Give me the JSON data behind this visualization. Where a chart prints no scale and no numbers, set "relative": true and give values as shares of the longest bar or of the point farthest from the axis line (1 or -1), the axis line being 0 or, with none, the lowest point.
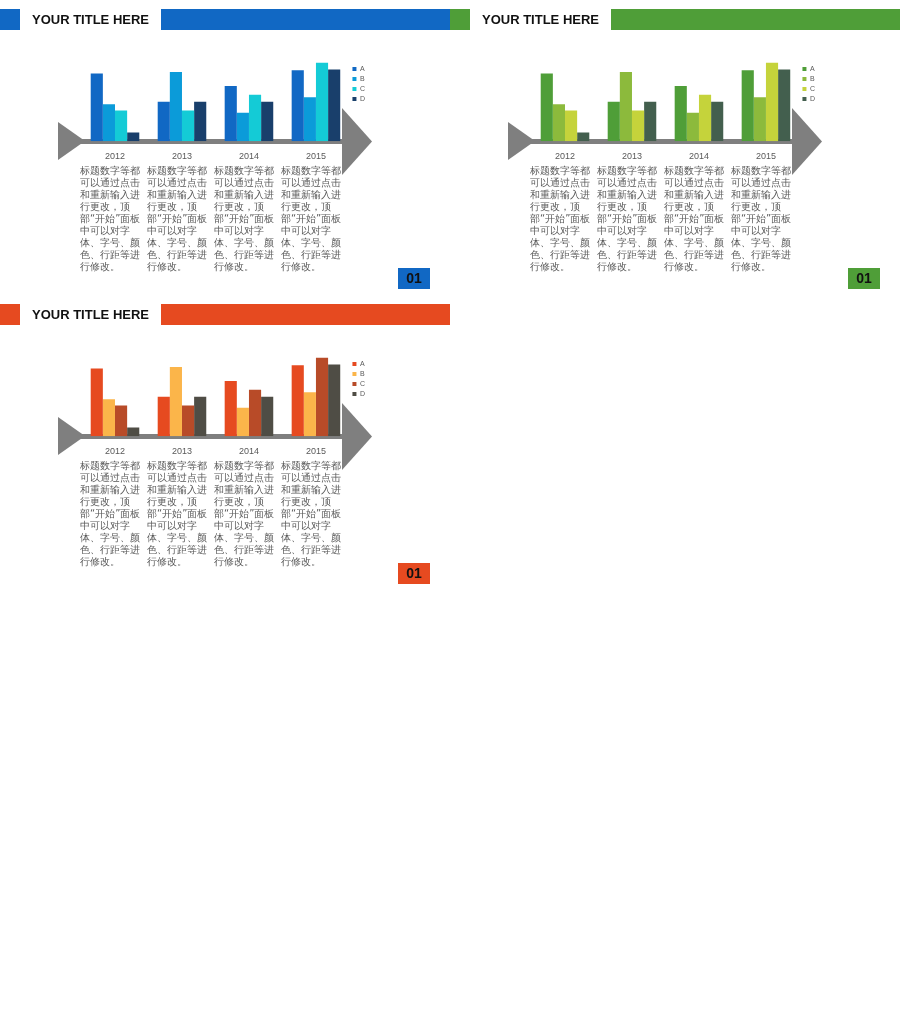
{
  "chart_data": [
    {
      "type": "bar",
      "title": "YOUR TITLE HERE",
      "categories": [
        "2012",
        "2013",
        "2014",
        "2015"
      ],
      "relative": true,
      "legend": "top right",
      "series": [
        {
          "name": "A",
          "color": "#1168c4",
          "values": [
            0.86,
            0.5,
            0.7,
            0.9
          ]
        },
        {
          "name": "B",
          "color": "#0b9bd9",
          "values": [
            0.47,
            0.88,
            0.36,
            0.56
          ]
        },
        {
          "name": "C",
          "color": "#14cbd6",
          "values": [
            0.39,
            0.39,
            0.59,
            1
          ]
        },
        {
          "name": "D",
          "color": "#193f6b",
          "values": [
            0.11,
            0.5,
            0.5,
            0.91
          ]
        }
      ],
      "annotations": [
        "标题数字等都可以通过点击和重新输入进行更改，顶部“开始”面板中可以对字体、字号、颜色、行距等进行修改。",
        "标题数字等都可以通过点击和重新输入进行更改，顶部“开始”面板中可以对字体、字号、颜色、行距等进行修改。",
        "标题数字等都可以通过点击和重新输入进行更改，顶部“开始”面板中可以对字体、字号、颜色、行距等进行修改。",
        "标题数字等都可以通过点击和重新输入进行更改，顶部“开始”面板中可以对字体、字号、颜色、行距等进行修改。",
        "01"
      ]
    },
    {
      "type": "bar",
      "title": "YOUR TITLE HERE",
      "categories": [
        "2012",
        "2013",
        "2014",
        "2015"
      ],
      "relative": true,
      "legend": "top right",
      "series": [
        {
          "name": "A",
          "color": "#4f9e38",
          "values": [
            0.86,
            0.5,
            0.7,
            0.9
          ]
        },
        {
          "name": "B",
          "color": "#8cba3c",
          "values": [
            0.47,
            0.88,
            0.36,
            0.56
          ]
        },
        {
          "name": "C",
          "color": "#c5d33b",
          "values": [
            0.39,
            0.39,
            0.59,
            1
          ]
        },
        {
          "name": "D",
          "color": "#435f4e",
          "values": [
            0.11,
            0.5,
            0.5,
            0.91
          ]
        }
      ],
      "annotations": [
        "标题数字等都可以通过点击和重新输入进行更改，顶部“开始”面板中可以对字体、字号、颜色、行距等进行修改。",
        "标题数字等都可以通过点击和重新输入进行更改，顶部“开始”面板中可以对字体、字号、颜色、行距等进行修改。",
        "标题数字等都可以通过点击和重新输入进行更改，顶部“开始”面板中可以对字体、字号、颜色、行距等进行修改。",
        "标题数字等都可以通过点击和重新输入进行更改，顶部“开始”面板中可以对字体、字号、颜色、行距等进行修改。",
        "01"
      ]
    },
    {
      "type": "bar",
      "title": "YOUR TITLE HERE",
      "categories": [
        "2012",
        "2013",
        "2014",
        "2015"
      ],
      "relative": true,
      "legend": "top right",
      "series": [
        {
          "name": "A",
          "color": "#e64a20",
          "values": [
            0.86,
            0.5,
            0.7,
            0.9
          ]
        },
        {
          "name": "B",
          "color": "#fbb54a",
          "values": [
            0.47,
            0.88,
            0.36,
            0.56
          ]
        },
        {
          "name": "C",
          "color": "#b84b28",
          "values": [
            0.39,
            0.39,
            0.59,
            1
          ]
        },
        {
          "name": "D",
          "color": "#4f4d45",
          "values": [
            0.11,
            0.5,
            0.5,
            0.91
          ]
        }
      ],
      "annotations": [
        "标题数字等都可以通过点击和重新输入进行更改，顶部“开始”面板中可以对字体、字号、颜色、行距等进行修改。",
        "标题数字等都可以通过点击和重新输入进行更改，顶部“开始”面板中可以对字体、字号、颜色、行距等进行修改。",
        "标题数字等都可以通过点击和重新输入进行更改，顶部“开始”面板中可以对字体、字号、颜色、行距等进行修改。",
        "标题数字等都可以通过点击和重新输入进行更改，顶部“开始”面板中可以对字体、字号、颜色、行距等进行修改。",
        "01"
      ]
    }
  ]
}
